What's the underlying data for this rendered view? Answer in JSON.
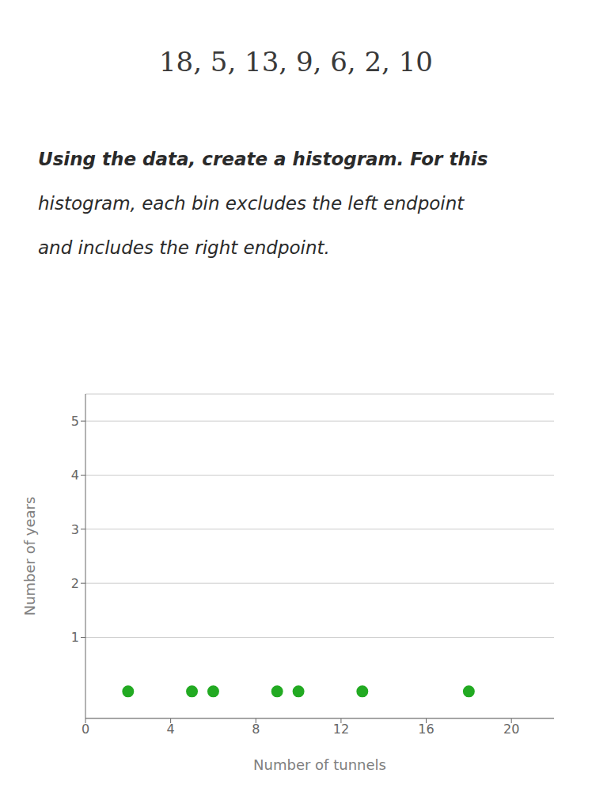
{
  "chart_data": {
    "type": "scatter",
    "title": "18, 5, 13, 9, 6, 2, 10",
    "annotations": [
      "Using the data, create a histogram. For this",
      "histogram, each bin excludes the left endpoint",
      "and includes the right endpoint."
    ],
    "x": [
      18,
      5,
      13,
      9,
      6,
      2,
      10
    ],
    "values": [
      0,
      0,
      0,
      0,
      0,
      0,
      0
    ],
    "color": "#22aa22",
    "xlabel": "Number of tunnels",
    "ylabel": "Number of years",
    "xlim": [
      0,
      22
    ],
    "ylim": [
      -0.5,
      5.5
    ],
    "xticks": [
      0,
      4,
      8,
      12,
      16,
      20
    ],
    "yticks": [
      1,
      2,
      3,
      4,
      5
    ],
    "grid": true
  }
}
